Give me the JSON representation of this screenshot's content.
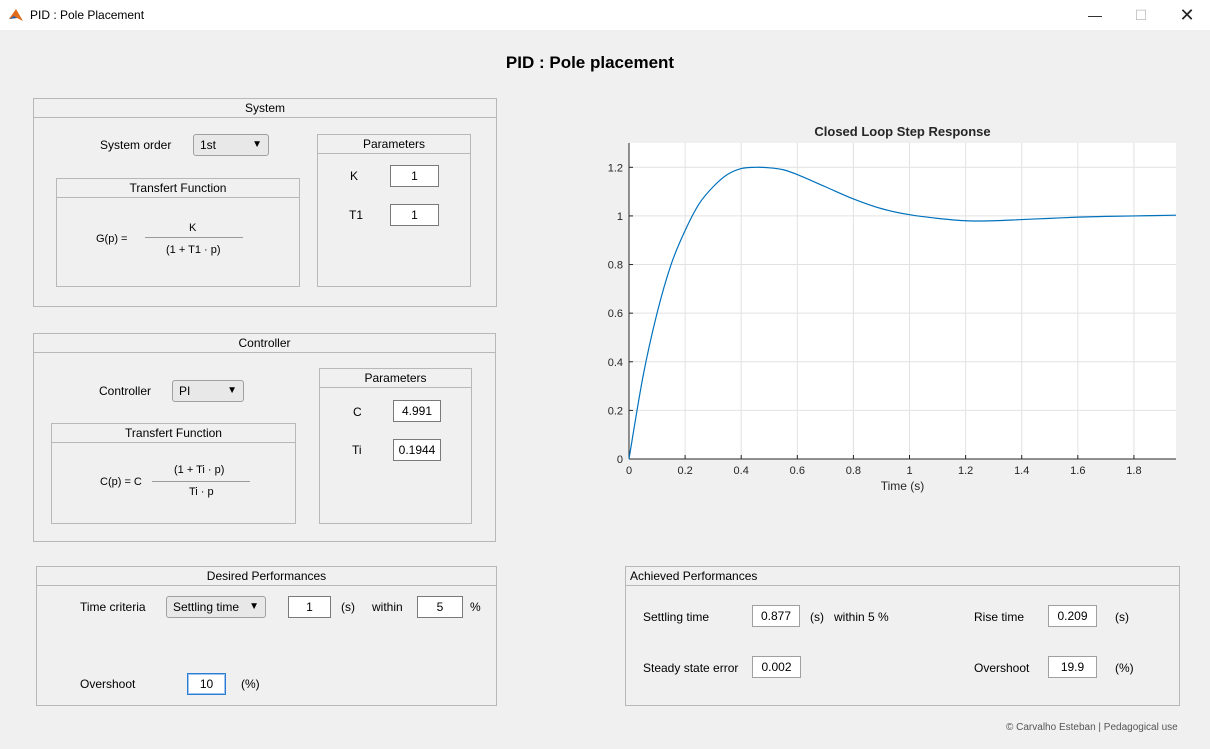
{
  "window": {
    "title": "PID : Pole Placement",
    "minimize": "—",
    "maximize": "☐",
    "close": "✕"
  },
  "app_title": "PID : Pole placement",
  "system": {
    "title": "System",
    "order_label": "System order",
    "order_value": "1st",
    "tf_title": "Transfert Function",
    "tf_lhs": "G(p) =",
    "tf_num": "K",
    "tf_den": "(1 + T1 · p)",
    "params_title": "Parameters",
    "k_label": "K",
    "k_value": "1",
    "t1_label": "T1",
    "t1_value": "1"
  },
  "controller": {
    "title": "Controller",
    "type_label": "Controller",
    "type_value": "PI",
    "tf_title": "Transfert Function",
    "tf_lhs": "C(p) = C",
    "tf_num": "(1 + Ti · p)",
    "tf_den": "Ti · p",
    "params_title": "Parameters",
    "c_label": "C",
    "c_value": "4.991",
    "ti_label": "Ti",
    "ti_value": "0.1944"
  },
  "desired": {
    "title": "Desired Performances",
    "time_criteria_label": "Time criteria",
    "time_criteria_value": "Settling time",
    "time_value": "1",
    "time_unit": "(s)",
    "within_label": "within",
    "within_value": "5",
    "within_unit": "%",
    "overshoot_label": "Overshoot",
    "overshoot_value": "10",
    "overshoot_unit": "(%)"
  },
  "achieved": {
    "title": "Achieved Performances",
    "settling_label": "Settling time",
    "settling_value": "0.877",
    "settling_unit": "(s)",
    "settling_within": "within 5 %",
    "rise_label": "Rise time",
    "rise_value": "0.209",
    "rise_unit": "(s)",
    "sse_label": "Steady state error",
    "sse_value": "0.002",
    "overshoot_label": "Overshoot",
    "overshoot_value": "19.9",
    "overshoot_unit": "(%)"
  },
  "chart_data": {
    "type": "line",
    "title": "Closed Loop Step Response",
    "xlabel": "Time (s)",
    "ylabel": "",
    "xlim": [
      0,
      1.95
    ],
    "ylim": [
      0,
      1.3
    ],
    "xticks": [
      "0",
      "0.2",
      "0.4",
      "0.6",
      "0.8",
      "1",
      "1.2",
      "1.4",
      "1.6",
      "1.8"
    ],
    "yticks": [
      "0",
      "0.2",
      "0.4",
      "0.6",
      "0.8",
      "1",
      "1.2"
    ],
    "grid": true,
    "series": [
      {
        "color": "#0072bd",
        "x": [
          0,
          0.05,
          0.1,
          0.15,
          0.2,
          0.25,
          0.3,
          0.35,
          0.4,
          0.45,
          0.5,
          0.55,
          0.6,
          0.7,
          0.8,
          0.9,
          1.0,
          1.1,
          1.2,
          1.3,
          1.4,
          1.5,
          1.6,
          1.7,
          1.8,
          1.95
        ],
        "y": [
          0,
          0.34,
          0.6,
          0.8,
          0.94,
          1.05,
          1.12,
          1.17,
          1.195,
          1.2,
          1.198,
          1.19,
          1.17,
          1.12,
          1.07,
          1.03,
          1.005,
          0.99,
          0.98,
          0.98,
          0.985,
          0.99,
          0.995,
          0.998,
          1.0,
          1.003
        ]
      }
    ]
  },
  "footer": "© Carvalho Esteban | Pedagogical use"
}
